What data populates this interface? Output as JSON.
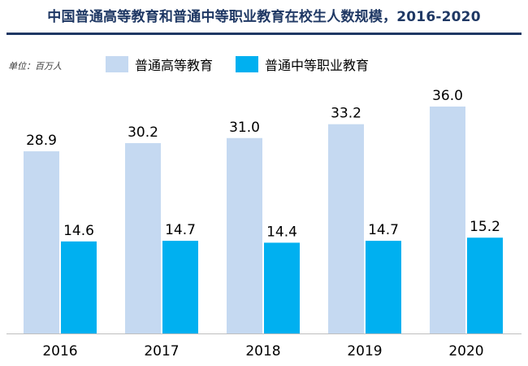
{
  "header": {
    "title": "中国普通高等教育和普通中等职业教育在校生人数规模，2016-2020",
    "unit": "单位：百万人"
  },
  "colors": {
    "title": "#1f3864",
    "series_higher": "#c5d9f1",
    "series_vocational": "#00b0f0",
    "axis": "#bfbfbf"
  },
  "chart_data": {
    "type": "bar",
    "title": "中国普通高等教育和普通中等职业教育在校生人数规模，2016-2020",
    "xlabel": "",
    "ylabel": "",
    "ylim": [
      0,
      40
    ],
    "grid": false,
    "legend_position": "top",
    "categories": [
      "2016",
      "2017",
      "2018",
      "2019",
      "2020"
    ],
    "series": [
      {
        "name": "普通高等教育",
        "values": [
          28.9,
          30.2,
          31.0,
          33.2,
          36.0
        ],
        "labels": [
          "28.9",
          "30.2",
          "31.0",
          "33.2",
          "36.0"
        ]
      },
      {
        "name": "普通中等职业教育",
        "values": [
          14.6,
          14.7,
          14.4,
          14.7,
          15.2
        ],
        "labels": [
          "14.6",
          "14.7",
          "14.4",
          "14.7",
          "15.2"
        ]
      }
    ]
  }
}
